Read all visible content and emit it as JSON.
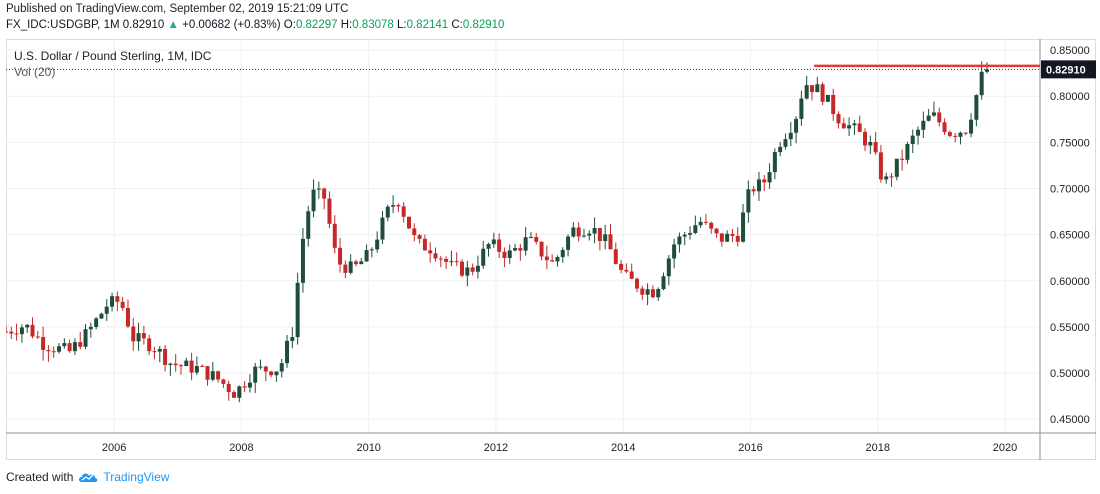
{
  "header": {
    "published": "Published on TradingView.com, September 02, 2019 15:21:09 UTC",
    "symbol": "FX_IDC:USDGBP, 1M",
    "last": "0.82910",
    "change_arrow": "▲",
    "change": "+0.00682 (+0.83%)",
    "open_label": "O:",
    "open": "0.82297",
    "high_label": "H:",
    "high": "0.83078",
    "low_label": "L:",
    "low": "0.82141",
    "close_label": "C:",
    "close": "0.82910"
  },
  "legend": {
    "title": "U.S. Dollar / Pound Sterling, 1M, IDC",
    "volume": "Vol (20)"
  },
  "footer": {
    "created_with": "Created with",
    "brand": "TradingView",
    "logo_icon": "tradingview-cloud-icon"
  },
  "colors": {
    "up": "#1e4d3a",
    "down": "#c62828",
    "resistance": "#e53935",
    "grid": "#eef0f3",
    "price_tag_bg": "#131722"
  },
  "chart_data": {
    "type": "candlestick",
    "interval": "1M",
    "last_price": 0.8291,
    "resistance_level": 0.8329,
    "resistance_start": 2017.0,
    "xlim": [
      2004.3,
      2020.55
    ],
    "ylim": [
      0.435,
      0.862
    ],
    "x_ticks": [
      2006,
      2008,
      2010,
      2012,
      2014,
      2016,
      2018,
      2020
    ],
    "y_ticks": [
      0.45,
      0.5,
      0.55,
      0.6,
      0.65,
      0.7,
      0.75,
      0.8,
      0.85
    ],
    "anchors": [
      [
        2004.3,
        0.545
      ],
      [
        2004.6,
        0.552
      ],
      [
        2004.9,
        0.531
      ],
      [
        2005.3,
        0.523
      ],
      [
        2005.6,
        0.545
      ],
      [
        2005.9,
        0.575
      ],
      [
        2006.1,
        0.578
      ],
      [
        2006.3,
        0.538
      ],
      [
        2006.6,
        0.53
      ],
      [
        2006.9,
        0.51
      ],
      [
        2007.3,
        0.505
      ],
      [
        2007.6,
        0.495
      ],
      [
        2007.9,
        0.478
      ],
      [
        2008.2,
        0.503
      ],
      [
        2008.6,
        0.505
      ],
      [
        2008.8,
        0.545
      ],
      [
        2008.95,
        0.64
      ],
      [
        2009.1,
        0.695
      ],
      [
        2009.3,
        0.69
      ],
      [
        2009.5,
        0.62
      ],
      [
        2009.75,
        0.612
      ],
      [
        2010.0,
        0.628
      ],
      [
        2010.3,
        0.675
      ],
      [
        2010.45,
        0.69
      ],
      [
        2010.75,
        0.64
      ],
      [
        2011.0,
        0.635
      ],
      [
        2011.3,
        0.615
      ],
      [
        2011.6,
        0.61
      ],
      [
        2011.9,
        0.64
      ],
      [
        2012.2,
        0.628
      ],
      [
        2012.5,
        0.645
      ],
      [
        2012.9,
        0.618
      ],
      [
        2013.2,
        0.655
      ],
      [
        2013.5,
        0.658
      ],
      [
        2013.75,
        0.64
      ],
      [
        2014.0,
        0.605
      ],
      [
        2014.3,
        0.592
      ],
      [
        2014.5,
        0.588
      ],
      [
        2014.8,
        0.64
      ],
      [
        2015.2,
        0.665
      ],
      [
        2015.5,
        0.645
      ],
      [
        2015.8,
        0.65
      ],
      [
        2016.0,
        0.7
      ],
      [
        2016.2,
        0.705
      ],
      [
        2016.45,
        0.75
      ],
      [
        2016.7,
        0.775
      ],
      [
        2016.85,
        0.815
      ],
      [
        2017.1,
        0.805
      ],
      [
        2017.4,
        0.775
      ],
      [
        2017.7,
        0.76
      ],
      [
        2017.9,
        0.745
      ],
      [
        2018.1,
        0.705
      ],
      [
        2018.35,
        0.73
      ],
      [
        2018.6,
        0.76
      ],
      [
        2018.85,
        0.78
      ],
      [
        2019.15,
        0.76
      ],
      [
        2019.4,
        0.765
      ],
      [
        2019.65,
        0.825
      ]
    ]
  }
}
